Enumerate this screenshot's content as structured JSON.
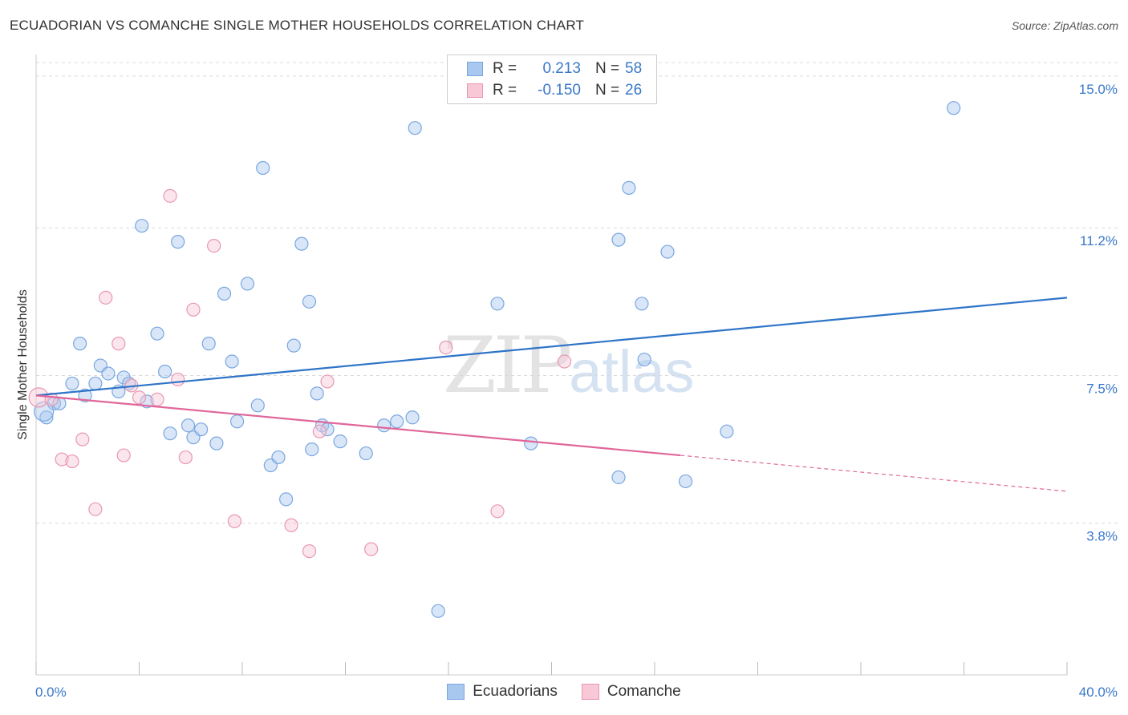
{
  "title": "ECUADORIAN VS COMANCHE SINGLE MOTHER HOUSEHOLDS CORRELATION CHART",
  "source": "Source: ZipAtlas.com",
  "watermark": {
    "zip": "ZIP",
    "atlas": "atlas"
  },
  "legend_top": [
    {
      "r_label": "R =",
      "r_value": "0.213",
      "n_label": "N =",
      "n_value": "58",
      "color": "#a8c8f0",
      "border": "#7aa7e0",
      "text_color": "#3a78c8"
    },
    {
      "r_label": "R =",
      "r_value": "-0.150",
      "n_label": "N =",
      "n_value": "26",
      "color": "#f8c8d6",
      "border": "#e898b0",
      "text_color": "#3a78c8"
    }
  ],
  "legend_bottom": [
    {
      "label": "Ecuadorians",
      "color": "#a8c8f0",
      "border": "#7aa7e0"
    },
    {
      "label": "Comanche",
      "color": "#f8c8d6",
      "border": "#e898b0"
    }
  ],
  "colors": {
    "blue": "#2e74c8",
    "pink": "#e0669a",
    "axis_text": "#3a78c8",
    "grid": "#d9d9d9"
  },
  "chart_data": {
    "type": "scatter",
    "title": "ECUADORIAN VS COMANCHE SINGLE MOTHER HOUSEHOLDS CORRELATION CHART",
    "xlabel": "",
    "ylabel": "Single Mother Households",
    "xlim": [
      0,
      40
    ],
    "ylim": [
      0,
      15.34
    ],
    "x_ticks": [
      "0.0%",
      "40.0%"
    ],
    "y_ticks": [
      {
        "value": 15.0,
        "label": "15.0%"
      },
      {
        "value": 11.2,
        "label": "11.2%"
      },
      {
        "value": 7.5,
        "label": "7.5%"
      },
      {
        "value": 3.8,
        "label": "3.8%"
      }
    ],
    "grid": true,
    "legend_placement": "top-center and bottom",
    "series": [
      {
        "name": "Ecuadorians",
        "r": 0.213,
        "n": 58,
        "trend": {
          "x0": 0,
          "y0": 7.0,
          "x1": 40,
          "y1": 9.45
        },
        "points": [
          [
            0.4,
            6.45
          ],
          [
            0.7,
            6.8
          ],
          [
            0.9,
            6.8
          ],
          [
            1.4,
            7.3
          ],
          [
            1.7,
            8.3
          ],
          [
            1.9,
            7.0
          ],
          [
            2.3,
            7.3
          ],
          [
            2.5,
            7.75
          ],
          [
            2.8,
            7.55
          ],
          [
            3.2,
            7.1
          ],
          [
            3.4,
            7.45
          ],
          [
            3.6,
            7.3
          ],
          [
            4.1,
            11.25
          ],
          [
            4.3,
            6.85
          ],
          [
            4.7,
            8.55
          ],
          [
            5.0,
            7.6
          ],
          [
            5.2,
            6.05
          ],
          [
            5.5,
            10.85
          ],
          [
            5.9,
            6.25
          ],
          [
            6.1,
            5.95
          ],
          [
            6.4,
            6.15
          ],
          [
            6.7,
            8.3
          ],
          [
            7.0,
            5.8
          ],
          [
            7.3,
            9.55
          ],
          [
            7.6,
            7.85
          ],
          [
            7.8,
            6.35
          ],
          [
            8.2,
            9.8
          ],
          [
            8.6,
            6.75
          ],
          [
            8.8,
            12.7
          ],
          [
            9.1,
            5.25
          ],
          [
            9.4,
            5.45
          ],
          [
            9.7,
            4.4
          ],
          [
            10.0,
            8.25
          ],
          [
            10.3,
            10.8
          ],
          [
            10.6,
            9.35
          ],
          [
            10.7,
            5.65
          ],
          [
            10.9,
            7.05
          ],
          [
            11.1,
            6.25
          ],
          [
            11.3,
            6.15
          ],
          [
            11.8,
            5.85
          ],
          [
            12.8,
            5.55
          ],
          [
            13.5,
            6.25
          ],
          [
            14.0,
            6.35
          ],
          [
            14.6,
            6.45
          ],
          [
            14.7,
            13.7
          ],
          [
            15.6,
            1.6
          ],
          [
            17.9,
            9.3
          ],
          [
            19.2,
            5.8
          ],
          [
            22.6,
            4.95
          ],
          [
            22.6,
            10.9
          ],
          [
            23.0,
            12.2
          ],
          [
            23.5,
            9.3
          ],
          [
            23.6,
            7.9
          ],
          [
            24.5,
            10.6
          ],
          [
            25.2,
            4.85
          ],
          [
            26.8,
            6.1
          ],
          [
            35.6,
            14.2
          ],
          [
            0.3,
            6.6
          ]
        ]
      },
      {
        "name": "Comanche",
        "r": -0.15,
        "n": 26,
        "trend": {
          "x0": 0,
          "y0": 7.0,
          "x1": 25.0,
          "y1": 5.5,
          "dash_x1": 40,
          "dash_y1": 4.6
        },
        "points": [
          [
            0.1,
            6.95
          ],
          [
            0.6,
            6.9
          ],
          [
            1.0,
            5.4
          ],
          [
            1.4,
            5.35
          ],
          [
            1.8,
            5.9
          ],
          [
            2.3,
            4.15
          ],
          [
            2.7,
            9.45
          ],
          [
            3.2,
            8.3
          ],
          [
            3.4,
            5.5
          ],
          [
            3.7,
            7.25
          ],
          [
            4.0,
            6.95
          ],
          [
            4.7,
            6.9
          ],
          [
            5.2,
            12.0
          ],
          [
            5.5,
            7.4
          ],
          [
            5.8,
            5.45
          ],
          [
            6.1,
            9.15
          ],
          [
            6.9,
            10.75
          ],
          [
            7.7,
            3.85
          ],
          [
            9.9,
            3.75
          ],
          [
            10.6,
            3.1
          ],
          [
            11.0,
            6.1
          ],
          [
            11.3,
            7.35
          ],
          [
            13.0,
            3.15
          ],
          [
            15.9,
            8.2
          ],
          [
            17.9,
            4.1
          ],
          [
            20.5,
            7.85
          ]
        ]
      }
    ]
  }
}
